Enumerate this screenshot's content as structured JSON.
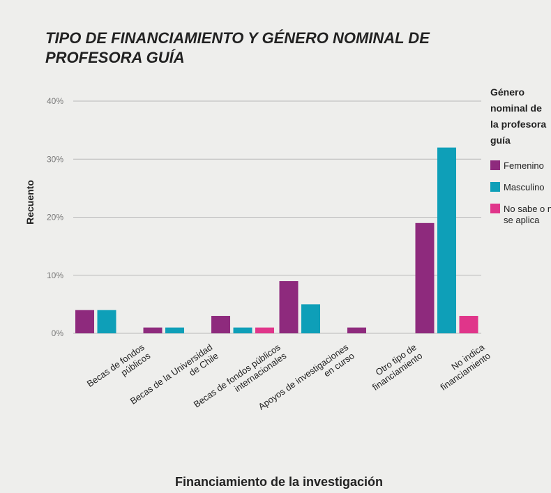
{
  "chart_data": {
    "type": "bar",
    "title": "TIPO DE FINANCIAMIENTO Y GÉNERO NOMINAL DE\nPROFESORA GUÍA",
    "x_label": "Financiamiento de la investigación",
    "y_label": "Recuento",
    "categories": [
      "Becas de fondos\npúblicos",
      "Becas de la Universidad\nde Chile",
      "Becas de fondos públicos\ninternacionales",
      "Apoyos de investigaciones\nen curso",
      "Otro tipo de\nfinanciamiento",
      "No indica\nfinanciamiento"
    ],
    "series": [
      {
        "name": "Femenino",
        "color": "#8e2a7d",
        "values": [
          4,
          1,
          3,
          9,
          1,
          19
        ]
      },
      {
        "name": "Masculino",
        "color": "#0e9fb8",
        "values": [
          4,
          1,
          1,
          5,
          0,
          32
        ]
      },
      {
        "name": "No sabe o no\nse aplica",
        "color": "#e0358a",
        "values": [
          0,
          0,
          1,
          0,
          0,
          3
        ]
      }
    ],
    "legend_title": "Género\nnominal de\nla profesora\nguía",
    "ylim": [
      0,
      40
    ],
    "yticks": [
      {
        "value": 0,
        "label": "0%"
      },
      {
        "value": 10,
        "label": "10%"
      },
      {
        "value": 20,
        "label": "20%"
      },
      {
        "value": 30,
        "label": "30%"
      },
      {
        "value": 40,
        "label": "40%"
      }
    ],
    "grid": true,
    "legend": "right"
  }
}
